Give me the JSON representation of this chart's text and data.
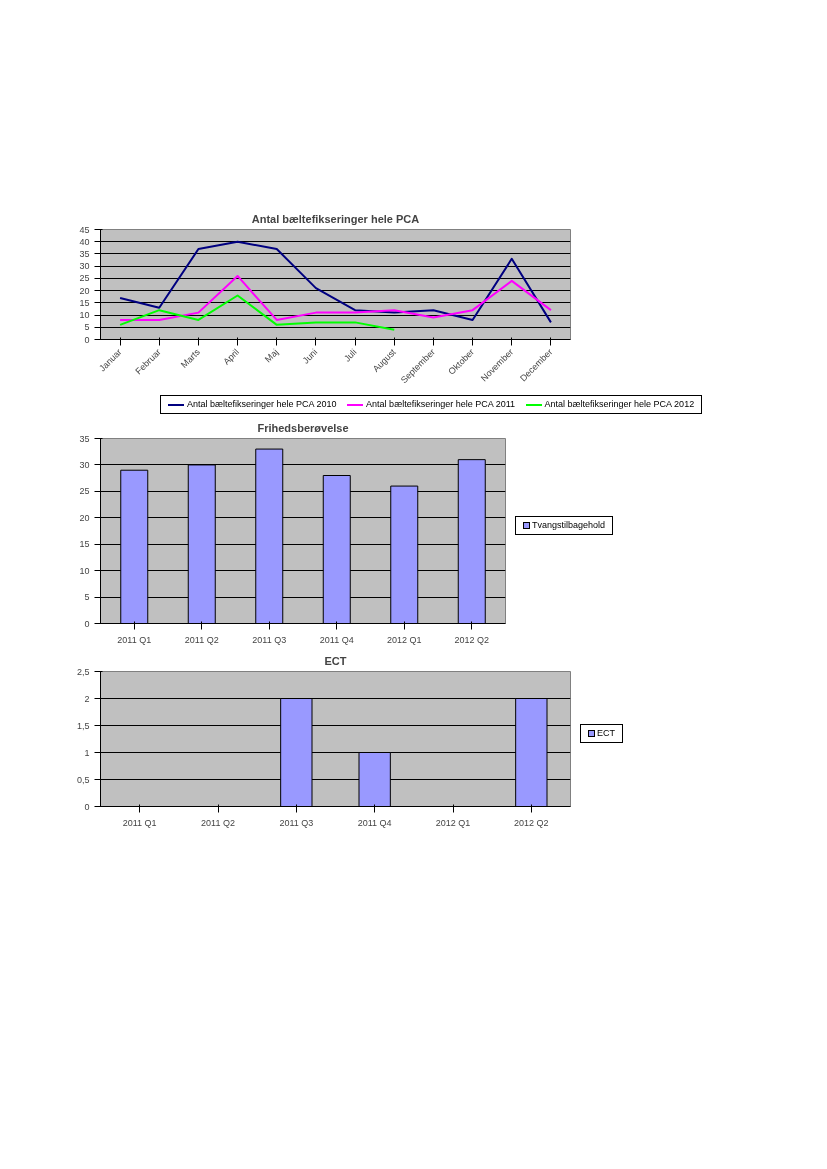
{
  "chart_data": [
    {
      "type": "line",
      "title": "Antal bæltefikseringer hele PCA",
      "categories": [
        "Januar",
        "Februar",
        "Marts",
        "April",
        "Maj",
        "Juni",
        "Juli",
        "August",
        "September",
        "Oktober",
        "November",
        "December"
      ],
      "series": [
        {
          "name": "Antal bæltefikseringer hele PCA 2010",
          "color": "#000080",
          "values": [
            17,
            13,
            37,
            40,
            37,
            21,
            12,
            11,
            12,
            8,
            33,
            7
          ]
        },
        {
          "name": "Antal bæltefikseringer hele PCA 2011",
          "color": "#ff00ff",
          "values": [
            8,
            8,
            11,
            26,
            8,
            11,
            11,
            12,
            9,
            12,
            24,
            12
          ]
        },
        {
          "name": "Antal bæltefikseringer hele PCA 2012",
          "color": "#00ff00",
          "values": [
            6,
            12,
            8,
            18,
            6,
            7,
            7,
            4,
            null,
            null,
            null,
            null
          ]
        }
      ],
      "ylim": [
        0,
        45
      ],
      "yticks": [
        0,
        5,
        10,
        15,
        20,
        25,
        30,
        35,
        40,
        45
      ],
      "grid": "y",
      "legend": "bottom",
      "marker": "none",
      "line_style": "solid"
    },
    {
      "type": "bar",
      "title": "Frihedsberøvelse",
      "categories": [
        "2011 Q1",
        "2011 Q2",
        "2011 Q3",
        "2011 Q4",
        "2012 Q1",
        "2012 Q2"
      ],
      "series": [
        {
          "name": "Tvangstilbagehold",
          "color": "#9999ff",
          "values": [
            29,
            30,
            33,
            28,
            26,
            31
          ]
        }
      ],
      "ylim": [
        0,
        35
      ],
      "yticks": [
        0,
        5,
        10,
        15,
        20,
        25,
        30,
        35
      ],
      "grid": "y",
      "legend": "right"
    },
    {
      "type": "bar",
      "title": "ECT",
      "categories": [
        "2011 Q1",
        "2011 Q2",
        "2011 Q3",
        "2011 Q4",
        "2012 Q1",
        "2012 Q2"
      ],
      "series": [
        {
          "name": "ECT",
          "color": "#9999ff",
          "values": [
            0,
            0,
            2,
            1,
            0,
            2
          ]
        }
      ],
      "ylim": [
        0,
        2.5
      ],
      "yticks": [
        0,
        {
          "value": 0.5,
          "label": "0,5"
        },
        1,
        {
          "value": 1.5,
          "label": "1,5"
        },
        2,
        {
          "value": 2.5,
          "label": "2,5"
        }
      ],
      "grid": "y",
      "legend": "right"
    }
  ]
}
